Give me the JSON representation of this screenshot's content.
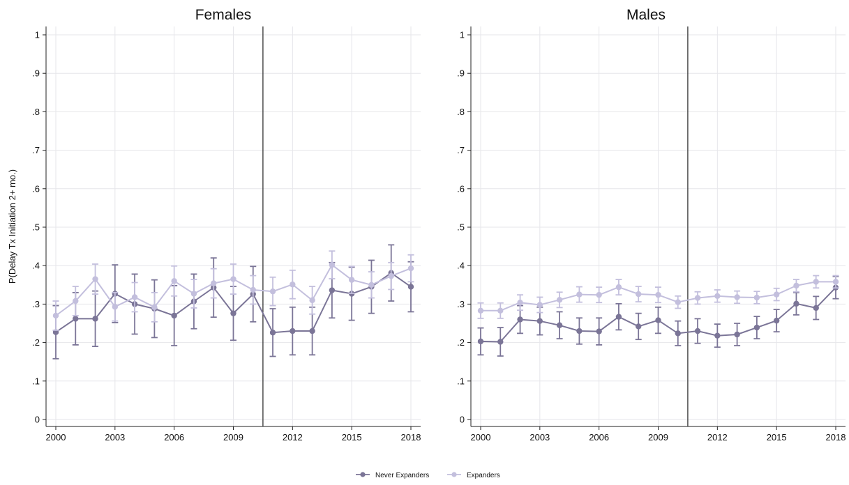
{
  "chart_data": [
    {
      "type": "line",
      "title": "Females",
      "ylabel": "P(Delay Tx Initiation 2+ mo.)",
      "xlabel": "",
      "xlim": [
        2000,
        2018
      ],
      "ylim": [
        0,
        1
      ],
      "xticks": [
        "2000",
        "2003",
        "2006",
        "2009",
        "2012",
        "2015",
        "2018"
      ],
      "yticks": [
        "0",
        ".1",
        ".2",
        ".3",
        ".4",
        ".5",
        ".6",
        ".7",
        ".8",
        ".9",
        "1"
      ],
      "vertical_line_x": 2010.5,
      "grid": true,
      "x": [
        2000,
        2001,
        2002,
        2003,
        2004,
        2005,
        2006,
        2007,
        2008,
        2009,
        2010,
        2011,
        2012,
        2013,
        2014,
        2015,
        2016,
        2017,
        2018
      ],
      "series": [
        {
          "name": "Never Expanders",
          "color": "#7b7597",
          "values": [
            0.227,
            0.262,
            0.262,
            0.327,
            0.3,
            0.288,
            0.27,
            0.307,
            0.343,
            0.276,
            0.326,
            0.226,
            0.23,
            0.23,
            0.336,
            0.327,
            0.345,
            0.381,
            0.345
          ],
          "lower": [
            0.158,
            0.194,
            0.19,
            0.252,
            0.222,
            0.213,
            0.192,
            0.236,
            0.266,
            0.206,
            0.254,
            0.164,
            0.168,
            0.168,
            0.264,
            0.258,
            0.276,
            0.308,
            0.28
          ],
          "upper": [
            0.296,
            0.33,
            0.334,
            0.402,
            0.378,
            0.363,
            0.348,
            0.378,
            0.42,
            0.346,
            0.398,
            0.288,
            0.292,
            0.292,
            0.408,
            0.396,
            0.414,
            0.454,
            0.41
          ]
        },
        {
          "name": "Expanders",
          "color": "#c3bfdd",
          "values": [
            0.27,
            0.308,
            0.365,
            0.293,
            0.318,
            0.292,
            0.36,
            0.327,
            0.354,
            0.365,
            0.337,
            0.333,
            0.351,
            0.31,
            0.402,
            0.363,
            0.35,
            0.373,
            0.393
          ],
          "lower": [
            0.232,
            0.27,
            0.326,
            0.256,
            0.28,
            0.254,
            0.321,
            0.29,
            0.316,
            0.326,
            0.3,
            0.296,
            0.314,
            0.274,
            0.366,
            0.328,
            0.316,
            0.338,
            0.358
          ],
          "upper": [
            0.308,
            0.346,
            0.404,
            0.33,
            0.356,
            0.33,
            0.399,
            0.364,
            0.392,
            0.404,
            0.374,
            0.37,
            0.388,
            0.346,
            0.438,
            0.398,
            0.384,
            0.408,
            0.428
          ]
        }
      ]
    },
    {
      "type": "line",
      "title": "Males",
      "ylabel": "",
      "xlabel": "",
      "xlim": [
        2000,
        2018
      ],
      "ylim": [
        0,
        1
      ],
      "xticks": [
        "2000",
        "2003",
        "2006",
        "2009",
        "2012",
        "2015",
        "2018"
      ],
      "yticks": [
        "0",
        ".1",
        ".2",
        ".3",
        ".4",
        ".5",
        ".6",
        ".7",
        ".8",
        ".9",
        "1"
      ],
      "vertical_line_x": 2010.5,
      "grid": true,
      "x": [
        2000,
        2001,
        2002,
        2003,
        2004,
        2005,
        2006,
        2007,
        2008,
        2009,
        2010,
        2011,
        2012,
        2013,
        2014,
        2015,
        2016,
        2017,
        2018
      ],
      "series": [
        {
          "name": "Never Expanders",
          "color": "#7b7597",
          "values": [
            0.203,
            0.202,
            0.26,
            0.256,
            0.245,
            0.23,
            0.229,
            0.267,
            0.242,
            0.258,
            0.224,
            0.23,
            0.218,
            0.221,
            0.239,
            0.257,
            0.301,
            0.29,
            0.343
          ],
          "lower": [
            0.168,
            0.165,
            0.224,
            0.22,
            0.21,
            0.196,
            0.194,
            0.233,
            0.208,
            0.224,
            0.192,
            0.198,
            0.188,
            0.192,
            0.21,
            0.228,
            0.272,
            0.26,
            0.314
          ],
          "upper": [
            0.238,
            0.239,
            0.296,
            0.292,
            0.28,
            0.264,
            0.264,
            0.301,
            0.276,
            0.292,
            0.256,
            0.262,
            0.248,
            0.25,
            0.268,
            0.286,
            0.33,
            0.32,
            0.372
          ]
        },
        {
          "name": "Expanders",
          "color": "#c3bfdd",
          "values": [
            0.283,
            0.283,
            0.304,
            0.298,
            0.311,
            0.325,
            0.324,
            0.344,
            0.326,
            0.324,
            0.305,
            0.316,
            0.321,
            0.318,
            0.317,
            0.325,
            0.348,
            0.358,
            0.358
          ],
          "lower": [
            0.263,
            0.263,
            0.284,
            0.278,
            0.291,
            0.305,
            0.304,
            0.324,
            0.306,
            0.304,
            0.289,
            0.3,
            0.305,
            0.302,
            0.301,
            0.309,
            0.332,
            0.342,
            0.342
          ],
          "upper": [
            0.303,
            0.303,
            0.324,
            0.318,
            0.331,
            0.345,
            0.344,
            0.364,
            0.346,
            0.344,
            0.321,
            0.332,
            0.337,
            0.334,
            0.333,
            0.341,
            0.364,
            0.374,
            0.374
          ]
        }
      ]
    }
  ],
  "legend": {
    "position": "bottom-center",
    "items": [
      {
        "label": "Never Expanders",
        "color": "#7b7597"
      },
      {
        "label": "Expanders",
        "color": "#c3bfdd"
      }
    ]
  }
}
